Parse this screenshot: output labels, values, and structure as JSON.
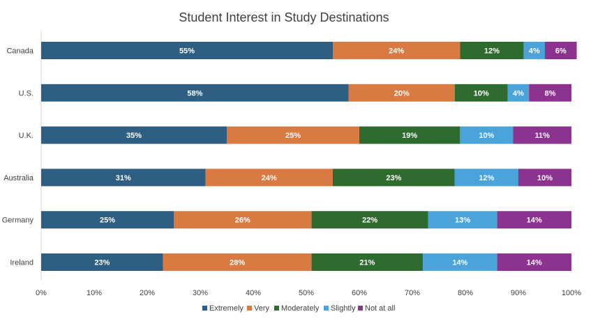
{
  "chart_data": {
    "type": "bar",
    "orientation": "horizontal",
    "stacked": "percent",
    "title": "Student Interest in Study Destinations",
    "xlabel": "",
    "ylabel": "",
    "categories": [
      "Canada",
      "U.S.",
      "U.K.",
      "Australia",
      "Germany",
      "Ireland"
    ],
    "series": [
      {
        "name": "Extremely",
        "color": "#2e5f82",
        "values": [
          55,
          58,
          35,
          31,
          25,
          23
        ]
      },
      {
        "name": "Very",
        "color": "#d97a43",
        "values": [
          24,
          20,
          25,
          24,
          26,
          28
        ]
      },
      {
        "name": "Moderately",
        "color": "#2f6b2f",
        "values": [
          12,
          10,
          19,
          23,
          22,
          21
        ]
      },
      {
        "name": "Slightly",
        "color": "#4aa3d9",
        "values": [
          4,
          4,
          10,
          12,
          13,
          14
        ]
      },
      {
        "name": "Not at all",
        "color": "#8c3390",
        "values": [
          6,
          8,
          11,
          10,
          14,
          14
        ]
      }
    ],
    "xlim": [
      0,
      100
    ],
    "xticks": [
      "0%",
      "10%",
      "20%",
      "30%",
      "40%",
      "50%",
      "60%",
      "70%",
      "80%",
      "90%",
      "100%"
    ],
    "grid": false,
    "legend": "bottom",
    "data_labels": true
  }
}
